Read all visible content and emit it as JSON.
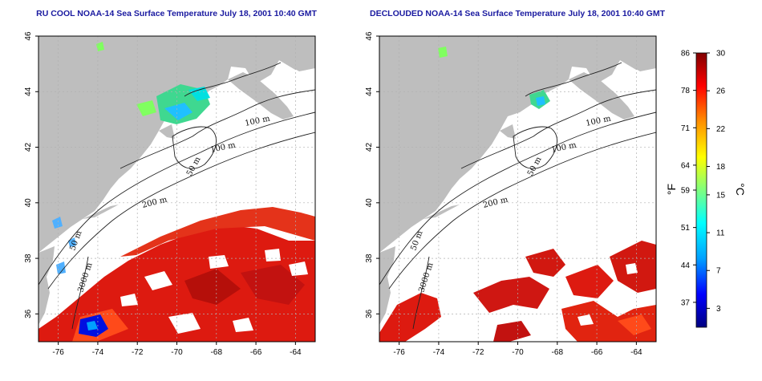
{
  "maps": [
    {
      "id": "rucool",
      "title": "RU COOL NOAA-14 Sea Surface Temperature July 18, 2001 10:40 GMT"
    },
    {
      "id": "declouded",
      "title": "DECLOUDED NOAA-14 Sea Surface Temperature July 18, 2001 10:40 GMT"
    }
  ],
  "axes": {
    "lon_range": [
      -77,
      -63
    ],
    "lat_range": [
      35,
      46
    ],
    "lon_ticks": [
      "-76",
      "-74",
      "-72",
      "-70",
      "-68",
      "-66",
      "-64"
    ],
    "lon_values": [
      -76,
      -74,
      -72,
      -70,
      -68,
      -66,
      -64
    ],
    "lat_ticks": [
      "46",
      "44",
      "42",
      "40",
      "38",
      "36"
    ],
    "lat_values": [
      46,
      44,
      42,
      40,
      38,
      36
    ]
  },
  "contour_labels": [
    "100 m",
    "100 m",
    "50 m",
    "200 m",
    "50 m",
    "3000 m"
  ],
  "colorbar": {
    "fahrenheit_label": "°F",
    "celsius_label": "°C",
    "fahrenheit_ticks": [
      "86",
      "78",
      "71",
      "64",
      "59",
      "51",
      "44",
      "37"
    ],
    "fahrenheit_fracs": [
      1.0,
      0.8636,
      0.7273,
      0.5909,
      0.5,
      0.3636,
      0.2273,
      0.0909
    ],
    "celsius_ticks": [
      "30",
      "26",
      "22",
      "18",
      "15",
      "11",
      "7",
      "3"
    ],
    "celsius_fracs": [
      1.0,
      0.8621,
      0.7241,
      0.5862,
      0.4828,
      0.3448,
      0.2069,
      0.069
    ],
    "range_c": [
      1,
      30
    ],
    "colors": [
      "#000080",
      "#0000ff",
      "#00a0ff",
      "#00ffff",
      "#7fff7f",
      "#ffff00",
      "#ff9000",
      "#ff0000",
      "#800000"
    ]
  },
  "colors": {
    "land": "#bebebe",
    "ocean": "#ffffff",
    "warm_water": "#dd1a10",
    "title": "#1a1aa0"
  }
}
